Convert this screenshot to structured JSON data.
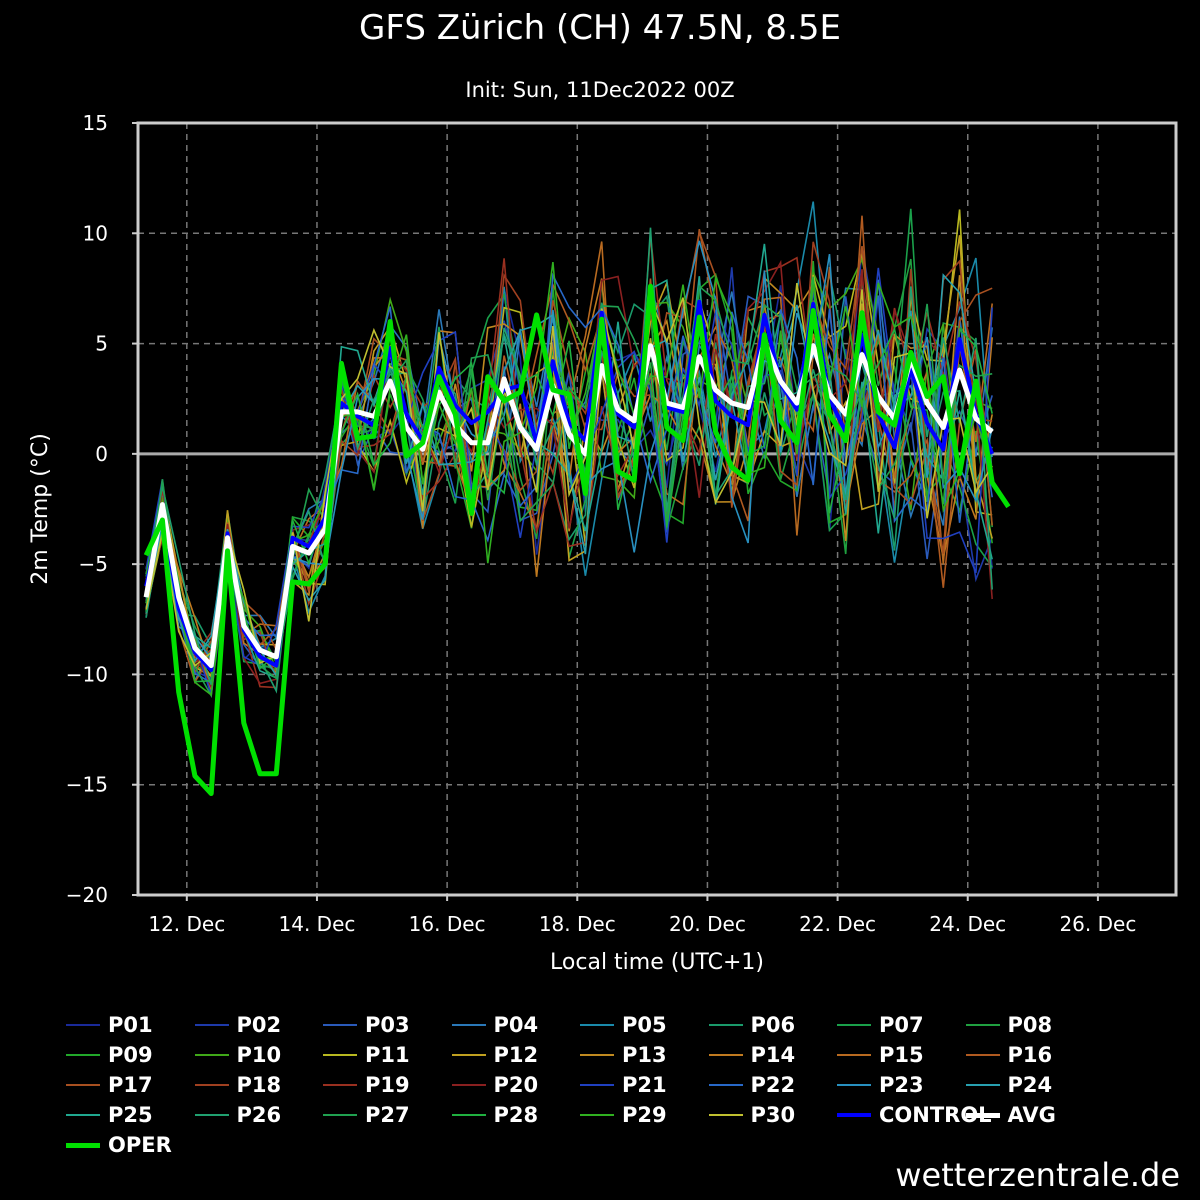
{
  "title": "GFS Zürich (CH) 47.5N, 8.5E",
  "subtitle": "Init: Sun, 11Dec2022 00Z",
  "watermark": "wetterzentrale.de",
  "chart_data": {
    "type": "line",
    "xlabel": "Local time (UTC+1)",
    "ylabel": "2m Temp (°C)",
    "ylim": [
      -20,
      15
    ],
    "yticks": [
      15,
      10,
      5,
      0,
      -5,
      -10,
      -15,
      -20
    ],
    "xlim_days": [
      11.25,
      27.2
    ],
    "xticks": [
      {
        "day": 12,
        "label": "12. Dec"
      },
      {
        "day": 14,
        "label": "14. Dec"
      },
      {
        "day": 16,
        "label": "16. Dec"
      },
      {
        "day": 18,
        "label": "18. Dec"
      },
      {
        "day": 20,
        "label": "20. Dec"
      },
      {
        "day": 22,
        "label": "22. Dec"
      },
      {
        "day": 24,
        "label": "24. Dec"
      },
      {
        "day": 26,
        "label": "26. Dec"
      }
    ],
    "grid": true,
    "x_start_day": 11.375,
    "x_step_days": 0.25,
    "series": [
      {
        "name": "AVG",
        "color": "#ffffff",
        "width": 5,
        "values": [
          -6.5,
          -2.3,
          -6.5,
          -8.8,
          -9.6,
          -3.8,
          -7.8,
          -8.9,
          -9.2,
          -4.2,
          -4.5,
          -3.4,
          1.9,
          1.9,
          1.7,
          3.3,
          1.2,
          0.2,
          2.8,
          1.3,
          0.5,
          0.5,
          3.4,
          1.2,
          0.2,
          3.1,
          0.9,
          0.0,
          4.0,
          2.0,
          1.5,
          4.9,
          2.3,
          2.1,
          4.4,
          2.9,
          2.3,
          2.1,
          5.1,
          3.3,
          2.3,
          4.9,
          2.7,
          1.8,
          4.5,
          2.6,
          1.6,
          4.3,
          2.3,
          1.2,
          3.8,
          1.6,
          1.0
        ]
      },
      {
        "name": "CONTROL",
        "color": "#0000ff",
        "width": 4,
        "values": [
          -6.0,
          -2.6,
          -7.0,
          -9.0,
          -9.8,
          -3.6,
          -8.0,
          -9.2,
          -9.6,
          -3.8,
          -4.2,
          -2.9,
          2.3,
          1.7,
          1.3,
          4.8,
          1.8,
          0.6,
          3.9,
          2.2,
          1.4,
          1.9,
          2.9,
          3.1,
          0.5,
          4.2,
          1.4,
          0.6,
          6.4,
          1.8,
          1.2,
          7.2,
          2.1,
          1.9,
          6.9,
          2.4,
          1.7,
          1.3,
          6.3,
          3.2,
          2.0,
          6.8,
          2.5,
          1.0,
          5.4,
          1.8,
          0.3,
          3.9,
          1.4,
          0.2,
          5.2,
          1.8,
          0.0
        ]
      },
      {
        "name": "OPER",
        "color": "#00e000",
        "width": 5,
        "values": [
          -4.6,
          -3.0,
          -10.8,
          -14.6,
          -15.4,
          -4.4,
          -12.2,
          -14.5,
          -14.5,
          -5.8,
          -5.9,
          -5.0,
          4.1,
          0.7,
          0.8,
          6.0,
          -0.1,
          0.5,
          3.5,
          1.8,
          -2.7,
          3.5,
          2.4,
          2.8,
          6.3,
          2.9,
          2.7,
          -1.8,
          6.1,
          -0.8,
          -1.2,
          7.6,
          1.2,
          0.6,
          6.2,
          1.0,
          -0.6,
          -1.2,
          5.4,
          1.5,
          0.5,
          6.5,
          1.8,
          0.6,
          6.4,
          1.9,
          1.3,
          4.6,
          2.6,
          3.5,
          -0.9,
          3.3,
          -1.3,
          -2.4
        ]
      }
    ],
    "members": [
      {
        "name": "P01",
        "color": "#1a2a9a"
      },
      {
        "name": "P02",
        "color": "#1e3aaa"
      },
      {
        "name": "P03",
        "color": "#2a5aba"
      },
      {
        "name": "P04",
        "color": "#2a78b8"
      },
      {
        "name": "P05",
        "color": "#1a8aaa"
      },
      {
        "name": "P06",
        "color": "#1a9a6a"
      },
      {
        "name": "P07",
        "color": "#1aa04a"
      },
      {
        "name": "P08",
        "color": "#20a040"
      },
      {
        "name": "P09",
        "color": "#22a82a"
      },
      {
        "name": "P10",
        "color": "#40a818"
      },
      {
        "name": "P11",
        "color": "#b8b820"
      },
      {
        "name": "P12",
        "color": "#c0a020"
      },
      {
        "name": "P13",
        "color": "#c08a20"
      },
      {
        "name": "P14",
        "color": "#c07a20"
      },
      {
        "name": "P15",
        "color": "#b86a20"
      },
      {
        "name": "P16",
        "color": "#b05a20"
      },
      {
        "name": "P17",
        "color": "#a85020"
      },
      {
        "name": "P18",
        "color": "#a04020"
      },
      {
        "name": "P19",
        "color": "#9a3020"
      },
      {
        "name": "P20",
        "color": "#8a2020"
      },
      {
        "name": "P21",
        "color": "#2040c0"
      },
      {
        "name": "P22",
        "color": "#2868c8"
      },
      {
        "name": "P23",
        "color": "#2890c0"
      },
      {
        "name": "P24",
        "color": "#28a0b0"
      },
      {
        "name": "P25",
        "color": "#20a890"
      },
      {
        "name": "P26",
        "color": "#20a070"
      },
      {
        "name": "P27",
        "color": "#20a050"
      },
      {
        "name": "P28",
        "color": "#20b040"
      },
      {
        "name": "P29",
        "color": "#30b020"
      },
      {
        "name": "P30",
        "color": "#c0c030"
      }
    ]
  },
  "legend": [
    {
      "label": "P01",
      "color": "#1a2a9a",
      "width": 2
    },
    {
      "label": "P02",
      "color": "#1e3aaa",
      "width": 2
    },
    {
      "label": "P03",
      "color": "#2a5aba",
      "width": 2
    },
    {
      "label": "P04",
      "color": "#2a78b8",
      "width": 2
    },
    {
      "label": "P05",
      "color": "#1a8aaa",
      "width": 2
    },
    {
      "label": "P06",
      "color": "#1a9a6a",
      "width": 2
    },
    {
      "label": "P07",
      "color": "#1aa04a",
      "width": 2
    },
    {
      "label": "P08",
      "color": "#20a040",
      "width": 2
    },
    {
      "label": "P09",
      "color": "#22a82a",
      "width": 2
    },
    {
      "label": "P10",
      "color": "#40a818",
      "width": 2
    },
    {
      "label": "P11",
      "color": "#b8b820",
      "width": 2
    },
    {
      "label": "P12",
      "color": "#c0a020",
      "width": 2
    },
    {
      "label": "P13",
      "color": "#c08a20",
      "width": 2
    },
    {
      "label": "P14",
      "color": "#c07a20",
      "width": 2
    },
    {
      "label": "P15",
      "color": "#b86a20",
      "width": 2
    },
    {
      "label": "P16",
      "color": "#b05a20",
      "width": 2
    },
    {
      "label": "P17",
      "color": "#a85020",
      "width": 2
    },
    {
      "label": "P18",
      "color": "#a04020",
      "width": 2
    },
    {
      "label": "P19",
      "color": "#9a3020",
      "width": 2
    },
    {
      "label": "P20",
      "color": "#8a2020",
      "width": 2
    },
    {
      "label": "P21",
      "color": "#2040c0",
      "width": 2
    },
    {
      "label": "P22",
      "color": "#2868c8",
      "width": 2
    },
    {
      "label": "P23",
      "color": "#2890c0",
      "width": 2
    },
    {
      "label": "P24",
      "color": "#28a0b0",
      "width": 2
    },
    {
      "label": "P25",
      "color": "#20a890",
      "width": 2
    },
    {
      "label": "P26",
      "color": "#20a070",
      "width": 2
    },
    {
      "label": "P27",
      "color": "#20a050",
      "width": 2
    },
    {
      "label": "P28",
      "color": "#20b040",
      "width": 2
    },
    {
      "label": "P29",
      "color": "#30b020",
      "width": 2
    },
    {
      "label": "P30",
      "color": "#c0c030",
      "width": 2
    },
    {
      "label": "CONTROL",
      "color": "#0000ff",
      "width": 4
    },
    {
      "label": "AVG",
      "color": "#ffffff",
      "width": 5
    },
    {
      "label": "OPER",
      "color": "#00e000",
      "width": 5
    }
  ]
}
